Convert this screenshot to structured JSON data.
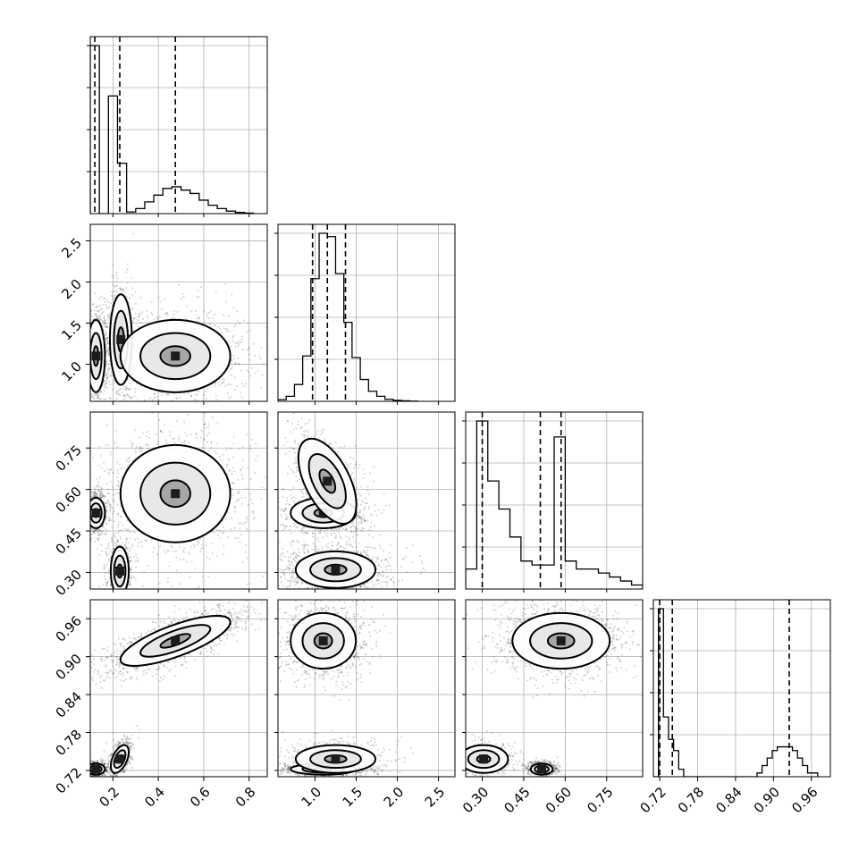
{
  "chart_data": {
    "type": "corner",
    "parameters": 4,
    "grid": true,
    "axes": [
      {
        "ticks": [
          0.2,
          0.4,
          0.6,
          0.8
        ],
        "tick_labels": [
          "0.2",
          "0.4",
          "0.6",
          "0.8"
        ],
        "lim": [
          0.1,
          0.88
        ]
      },
      {
        "ticks": [
          1.0,
          1.5,
          2.0,
          2.5
        ],
        "tick_labels": [
          "1.0",
          "1.5",
          "2.0",
          "2.5"
        ],
        "lim": [
          0.55,
          2.7
        ]
      },
      {
        "ticks": [
          0.3,
          0.45,
          0.6,
          0.75
        ],
        "tick_labels": [
          "0.30",
          "0.45",
          "0.60",
          "0.75"
        ],
        "lim": [
          0.24,
          0.88
        ]
      },
      {
        "ticks": [
          0.72,
          0.78,
          0.84,
          0.9,
          0.96
        ],
        "tick_labels": [
          "0.72",
          "0.78",
          "0.84",
          "0.90",
          "0.96"
        ],
        "lim": [
          0.71,
          0.99
        ]
      }
    ],
    "quantiles": [
      [
        0.12,
        0.23,
        0.475
      ],
      [
        0.97,
        1.15,
        1.37
      ],
      [
        0.3,
        0.51,
        0.585
      ],
      [
        0.72,
        0.74,
        0.925
      ]
    ],
    "histograms": [
      {
        "edges": [
          0.1,
          0.14,
          0.18,
          0.22,
          0.26,
          0.3,
          0.34,
          0.38,
          0.42,
          0.46,
          0.5,
          0.54,
          0.58,
          0.62,
          0.66,
          0.7,
          0.74,
          0.78,
          0.82
        ],
        "counts": [
          1.0,
          0.0,
          0.7,
          0.3,
          0.01,
          0.03,
          0.07,
          0.11,
          0.15,
          0.16,
          0.14,
          0.12,
          0.08,
          0.05,
          0.03,
          0.015,
          0.007,
          0.003
        ]
      },
      {
        "edges": [
          0.55,
          0.65,
          0.75,
          0.85,
          0.95,
          1.05,
          1.15,
          1.25,
          1.35,
          1.45,
          1.55,
          1.65,
          1.75,
          1.85,
          1.95,
          2.05,
          2.15,
          2.25
        ],
        "counts": [
          0.01,
          0.03,
          0.1,
          0.27,
          0.73,
          1.0,
          0.98,
          0.76,
          0.47,
          0.26,
          0.13,
          0.06,
          0.03,
          0.012,
          0.006,
          0.003,
          0.001
        ]
      },
      {
        "edges": [
          0.24,
          0.28,
          0.32,
          0.36,
          0.4,
          0.44,
          0.48,
          0.52,
          0.56,
          0.6,
          0.64,
          0.68,
          0.72,
          0.76,
          0.8,
          0.84,
          0.88
        ],
        "counts": [
          0.05,
          0.42,
          0.27,
          0.2,
          0.13,
          0.07,
          0.06,
          0.06,
          0.38,
          0.07,
          0.05,
          0.05,
          0.04,
          0.03,
          0.02,
          0.01
        ]
      },
      {
        "edges": [
          0.71,
          0.718,
          0.726,
          0.734,
          0.742,
          0.75,
          0.758,
          0.766,
          0.874,
          0.882,
          0.89,
          0.898,
          0.906,
          0.914,
          0.922,
          0.93,
          0.938,
          0.946,
          0.954,
          0.962,
          0.97
        ],
        "counts": [
          0.0,
          0.45,
          0.16,
          0.1,
          0.07,
          0.02,
          0.0,
          0.0,
          0.01,
          0.03,
          0.05,
          0.07,
          0.08,
          0.08,
          0.08,
          0.07,
          0.05,
          0.03,
          0.01,
          0.01
        ]
      }
    ],
    "panel_modes": [
      {
        "x": 0,
        "y": 1,
        "modes": [
          {
            "x": 0.125,
            "y": 1.1,
            "sx": 0.018,
            "sy": 0.2,
            "rho": 0.0,
            "w": 0.3
          },
          {
            "x": 0.235,
            "y": 1.3,
            "sx": 0.022,
            "sy": 0.25,
            "rho": 0.0,
            "w": 0.22
          },
          {
            "x": 0.475,
            "y": 1.1,
            "sx": 0.11,
            "sy": 0.2,
            "rho": 0.0,
            "w": 0.48
          }
        ]
      },
      {
        "x": 0,
        "y": 2,
        "modes": [
          {
            "x": 0.125,
            "y": 0.515,
            "sx": 0.018,
            "sy": 0.025,
            "rho": 0.0,
            "w": 0.3
          },
          {
            "x": 0.23,
            "y": 0.305,
            "sx": 0.018,
            "sy": 0.04,
            "rho": 0.0,
            "w": 0.22
          },
          {
            "x": 0.475,
            "y": 0.585,
            "sx": 0.11,
            "sy": 0.08,
            "rho": 0.0,
            "w": 0.48
          }
        ]
      },
      {
        "x": 1,
        "y": 2,
        "modes": [
          {
            "x": 1.1,
            "y": 0.515,
            "sx": 0.18,
            "sy": 0.025,
            "rho": 0.0,
            "w": 0.3
          },
          {
            "x": 1.15,
            "y": 0.63,
            "sx": 0.16,
            "sy": 0.07,
            "rho": -0.55,
            "w": 0.22
          },
          {
            "x": 1.25,
            "y": 0.31,
            "sx": 0.22,
            "sy": 0.03,
            "rho": 0.0,
            "w": 0.48
          }
        ]
      },
      {
        "x": 0,
        "y": 3,
        "modes": [
          {
            "x": 0.125,
            "y": 0.722,
            "sx": 0.018,
            "sy": 0.004,
            "rho": 0.0,
            "w": 0.3
          },
          {
            "x": 0.23,
            "y": 0.738,
            "sx": 0.018,
            "sy": 0.01,
            "rho": 0.5,
            "w": 0.22
          },
          {
            "x": 0.475,
            "y": 0.925,
            "sx": 0.11,
            "sy": 0.018,
            "rho": 0.75,
            "w": 0.48
          }
        ]
      },
      {
        "x": 1,
        "y": 3,
        "modes": [
          {
            "x": 1.1,
            "y": 0.722,
            "sx": 0.18,
            "sy": 0.004,
            "rho": 0.0,
            "w": 0.3
          },
          {
            "x": 1.25,
            "y": 0.738,
            "sx": 0.22,
            "sy": 0.01,
            "rho": 0.0,
            "w": 0.22
          },
          {
            "x": 1.1,
            "y": 0.925,
            "sx": 0.18,
            "sy": 0.02,
            "rho": 0.0,
            "w": 0.48
          }
        ]
      },
      {
        "x": 2,
        "y": 3,
        "modes": [
          {
            "x": 0.515,
            "y": 0.722,
            "sx": 0.018,
            "sy": 0.004,
            "rho": 0.0,
            "w": 0.3
          },
          {
            "x": 0.305,
            "y": 0.738,
            "sx": 0.04,
            "sy": 0.01,
            "rho": 0.0,
            "w": 0.22
          },
          {
            "x": 0.585,
            "y": 0.925,
            "sx": 0.08,
            "sy": 0.02,
            "rho": 0.0,
            "w": 0.48
          }
        ]
      }
    ]
  }
}
